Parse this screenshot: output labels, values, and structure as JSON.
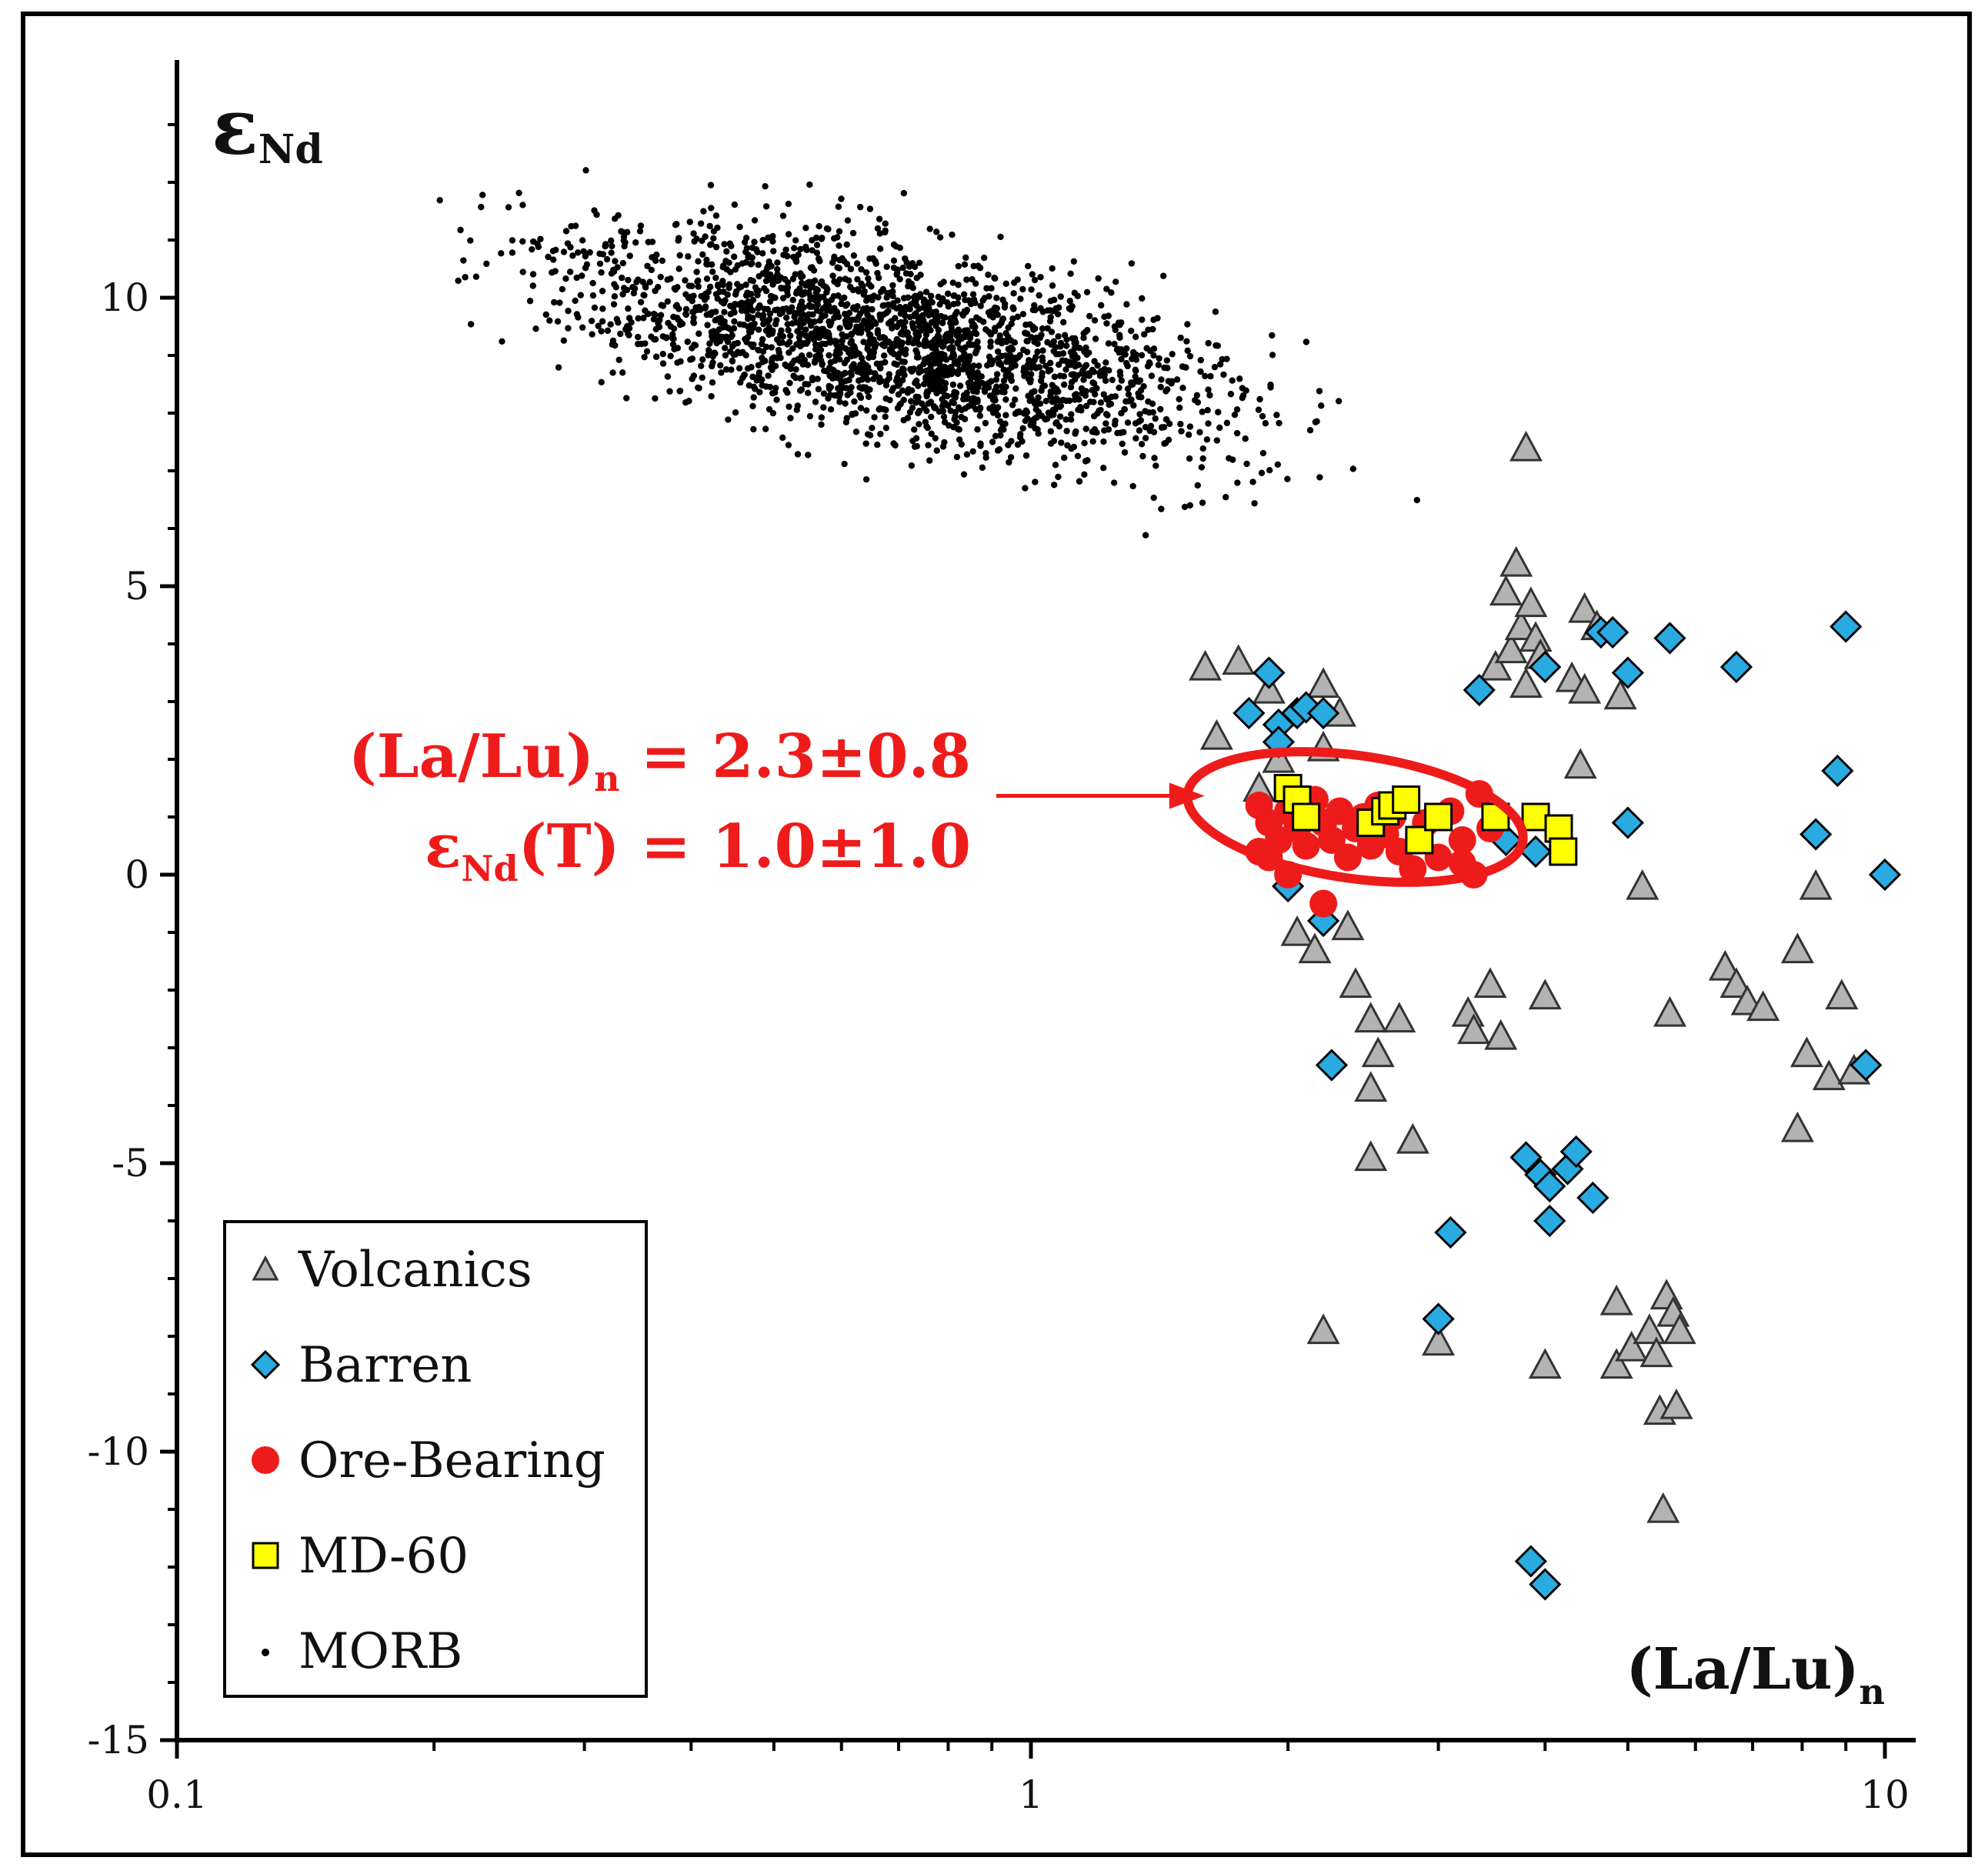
{
  "chart_data": {
    "type": "scatter",
    "title": "",
    "xlabel": "(La/Lu)",
    "xlabel_sub": "n",
    "ylabel": "ε",
    "ylabel_sub": "Nd",
    "xscale": "log",
    "xlim": [
      0.1,
      10
    ],
    "ylim": [
      -15,
      14
    ],
    "xticks": [
      {
        "value": 0.1,
        "label": "0.1"
      },
      {
        "value": 1,
        "label": "1"
      },
      {
        "value": 10,
        "label": "10"
      }
    ],
    "yticks": [
      {
        "value": 10,
        "label": "10"
      },
      {
        "value": 5,
        "label": "5"
      },
      {
        "value": 0,
        "label": "0"
      },
      {
        "value": -5,
        "label": "-5"
      },
      {
        "value": -10,
        "label": "-10"
      },
      {
        "value": -15,
        "label": "-15"
      }
    ],
    "grid": false,
    "legend_position": "bottom-left",
    "colors": {
      "volcanics": "#b3b3b3",
      "barren": "#29abe2",
      "ore": "#ee1b1b",
      "md60": "#ffff00",
      "morb": "#000000",
      "annotation": "#ee1b1b"
    },
    "annotation": {
      "line1_main": "(La/Lu)",
      "line1_sub": "n",
      "line1_rest": " = 2.3±0.8",
      "line2_main": "ε",
      "line2_sub": "Nd",
      "line2_rest": "(T) = 1.0±1.0",
      "arrow_target": [
        1.7,
        1.3
      ],
      "ellipse_center": [
        2.3,
        1.0
      ]
    },
    "series": [
      {
        "name": "Volcanics",
        "key": "volcanics",
        "marker": "triangle",
        "points": [
          [
            1.6,
            3.6
          ],
          [
            1.75,
            3.7
          ],
          [
            1.65,
            2.4
          ],
          [
            1.9,
            3.2
          ],
          [
            2.2,
            3.3
          ],
          [
            2.3,
            2.8
          ],
          [
            2.2,
            2.2
          ],
          [
            1.95,
            2.0
          ],
          [
            1.85,
            1.5
          ],
          [
            2.05,
            -1.0
          ],
          [
            2.15,
            -1.3
          ],
          [
            2.35,
            -0.9
          ],
          [
            2.4,
            -1.9
          ],
          [
            2.5,
            -2.5
          ],
          [
            2.7,
            -2.5
          ],
          [
            2.55,
            -3.1
          ],
          [
            2.5,
            -3.7
          ],
          [
            2.5,
            -4.9
          ],
          [
            2.8,
            -4.6
          ],
          [
            2.2,
            -7.9
          ],
          [
            3.0,
            -8.1
          ],
          [
            3.25,
            -2.4
          ],
          [
            3.3,
            -2.7
          ],
          [
            3.45,
            -1.9
          ],
          [
            3.55,
            -2.8
          ],
          [
            4.0,
            -2.1
          ],
          [
            4.0,
            -8.5
          ],
          [
            3.5,
            3.6
          ],
          [
            3.65,
            3.9
          ],
          [
            3.8,
            3.3
          ],
          [
            3.75,
            4.3
          ],
          [
            3.85,
            4.7
          ],
          [
            3.9,
            4.1
          ],
          [
            3.95,
            3.8
          ],
          [
            3.6,
            4.9
          ],
          [
            3.7,
            5.4
          ],
          [
            3.8,
            7.4
          ],
          [
            4.3,
            3.4
          ],
          [
            4.45,
            3.2
          ],
          [
            4.45,
            4.6
          ],
          [
            4.4,
            1.9
          ],
          [
            4.9,
            3.1
          ],
          [
            5.2,
            -0.2
          ],
          [
            5.6,
            -2.4
          ],
          [
            4.85,
            -7.4
          ],
          [
            4.85,
            -8.5
          ],
          [
            5.05,
            -8.2
          ],
          [
            5.3,
            -7.9
          ],
          [
            5.4,
            -8.3
          ],
          [
            5.55,
            -7.3
          ],
          [
            5.65,
            -7.6
          ],
          [
            5.75,
            -7.9
          ],
          [
            5.45,
            -9.3
          ],
          [
            5.7,
            -9.2
          ],
          [
            5.5,
            -11.0
          ],
          [
            6.5,
            -1.6
          ],
          [
            6.7,
            -1.9
          ],
          [
            6.9,
            -2.2
          ],
          [
            7.2,
            -2.3
          ],
          [
            7.9,
            -1.3
          ],
          [
            8.1,
            -3.1
          ],
          [
            8.3,
            -0.2
          ],
          [
            7.9,
            -4.4
          ],
          [
            8.6,
            -3.5
          ],
          [
            8.9,
            -2.1
          ],
          [
            9.2,
            -3.4
          ],
          [
            4.6,
            4.3
          ]
        ]
      },
      {
        "name": "Barren",
        "key": "barren",
        "marker": "diamond",
        "points": [
          [
            1.9,
            3.5
          ],
          [
            1.8,
            2.8
          ],
          [
            1.95,
            2.6
          ],
          [
            2.05,
            2.8
          ],
          [
            2.1,
            2.9
          ],
          [
            2.2,
            2.8
          ],
          [
            1.95,
            2.3
          ],
          [
            2.0,
            -0.2
          ],
          [
            2.2,
            -0.8
          ],
          [
            2.25,
            -3.3
          ],
          [
            3.35,
            3.2
          ],
          [
            4.0,
            3.6
          ],
          [
            3.6,
            0.6
          ],
          [
            3.9,
            0.4
          ],
          [
            4.65,
            4.2
          ],
          [
            4.8,
            4.2
          ],
          [
            5.0,
            3.5
          ],
          [
            5.0,
            0.9
          ],
          [
            5.6,
            4.1
          ],
          [
            6.7,
            3.6
          ],
          [
            8.3,
            0.7
          ],
          [
            8.8,
            1.8
          ],
          [
            9.0,
            4.3
          ],
          [
            9.5,
            -3.3
          ],
          [
            10.0,
            0.0
          ],
          [
            3.1,
            -6.2
          ],
          [
            3.0,
            -7.7
          ],
          [
            3.8,
            -4.9
          ],
          [
            3.95,
            -5.2
          ],
          [
            4.05,
            -5.4
          ],
          [
            4.25,
            -5.1
          ],
          [
            4.35,
            -4.8
          ],
          [
            4.55,
            -5.6
          ],
          [
            4.05,
            -6.0
          ],
          [
            3.85,
            -11.9
          ],
          [
            4.0,
            -12.3
          ]
        ]
      },
      {
        "name": "Ore-Bearing",
        "key": "ore",
        "marker": "circle",
        "points": [
          [
            1.85,
            1.2
          ],
          [
            1.9,
            0.9
          ],
          [
            1.95,
            0.6
          ],
          [
            1.9,
            0.3
          ],
          [
            2.0,
            1.1
          ],
          [
            2.05,
            0.8
          ],
          [
            2.1,
            0.5
          ],
          [
            2.15,
            1.3
          ],
          [
            2.2,
            0.9
          ],
          [
            2.2,
            -0.5
          ],
          [
            2.25,
            0.6
          ],
          [
            2.3,
            1.1
          ],
          [
            2.35,
            0.3
          ],
          [
            2.4,
            0.8
          ],
          [
            2.45,
            1.0
          ],
          [
            2.5,
            0.5
          ],
          [
            2.55,
            1.2
          ],
          [
            2.6,
            0.7
          ],
          [
            2.7,
            0.4
          ],
          [
            2.8,
            0.1
          ],
          [
            2.9,
            0.9
          ],
          [
            3.0,
            0.3
          ],
          [
            3.1,
            1.1
          ],
          [
            3.2,
            0.6
          ],
          [
            3.3,
            0.0
          ],
          [
            3.35,
            1.4
          ],
          [
            3.45,
            0.8
          ],
          [
            3.2,
            0.2
          ],
          [
            2.0,
            0.0
          ],
          [
            1.85,
            0.4
          ],
          [
            2.65,
            1.0
          ]
        ]
      },
      {
        "name": "MD-60",
        "key": "md60",
        "marker": "square",
        "points": [
          [
            2.0,
            1.5
          ],
          [
            2.05,
            1.3
          ],
          [
            2.1,
            1.0
          ],
          [
            2.5,
            0.9
          ],
          [
            2.6,
            1.1
          ],
          [
            2.65,
            1.2
          ],
          [
            2.75,
            1.3
          ],
          [
            2.85,
            0.6
          ],
          [
            3.0,
            1.0
          ],
          [
            3.5,
            1.0
          ],
          [
            3.9,
            1.0
          ],
          [
            4.15,
            0.8
          ],
          [
            4.2,
            0.4
          ]
        ]
      },
      {
        "name": "MORB",
        "key": "morb",
        "marker": "dot",
        "count": 2400
      }
    ]
  }
}
